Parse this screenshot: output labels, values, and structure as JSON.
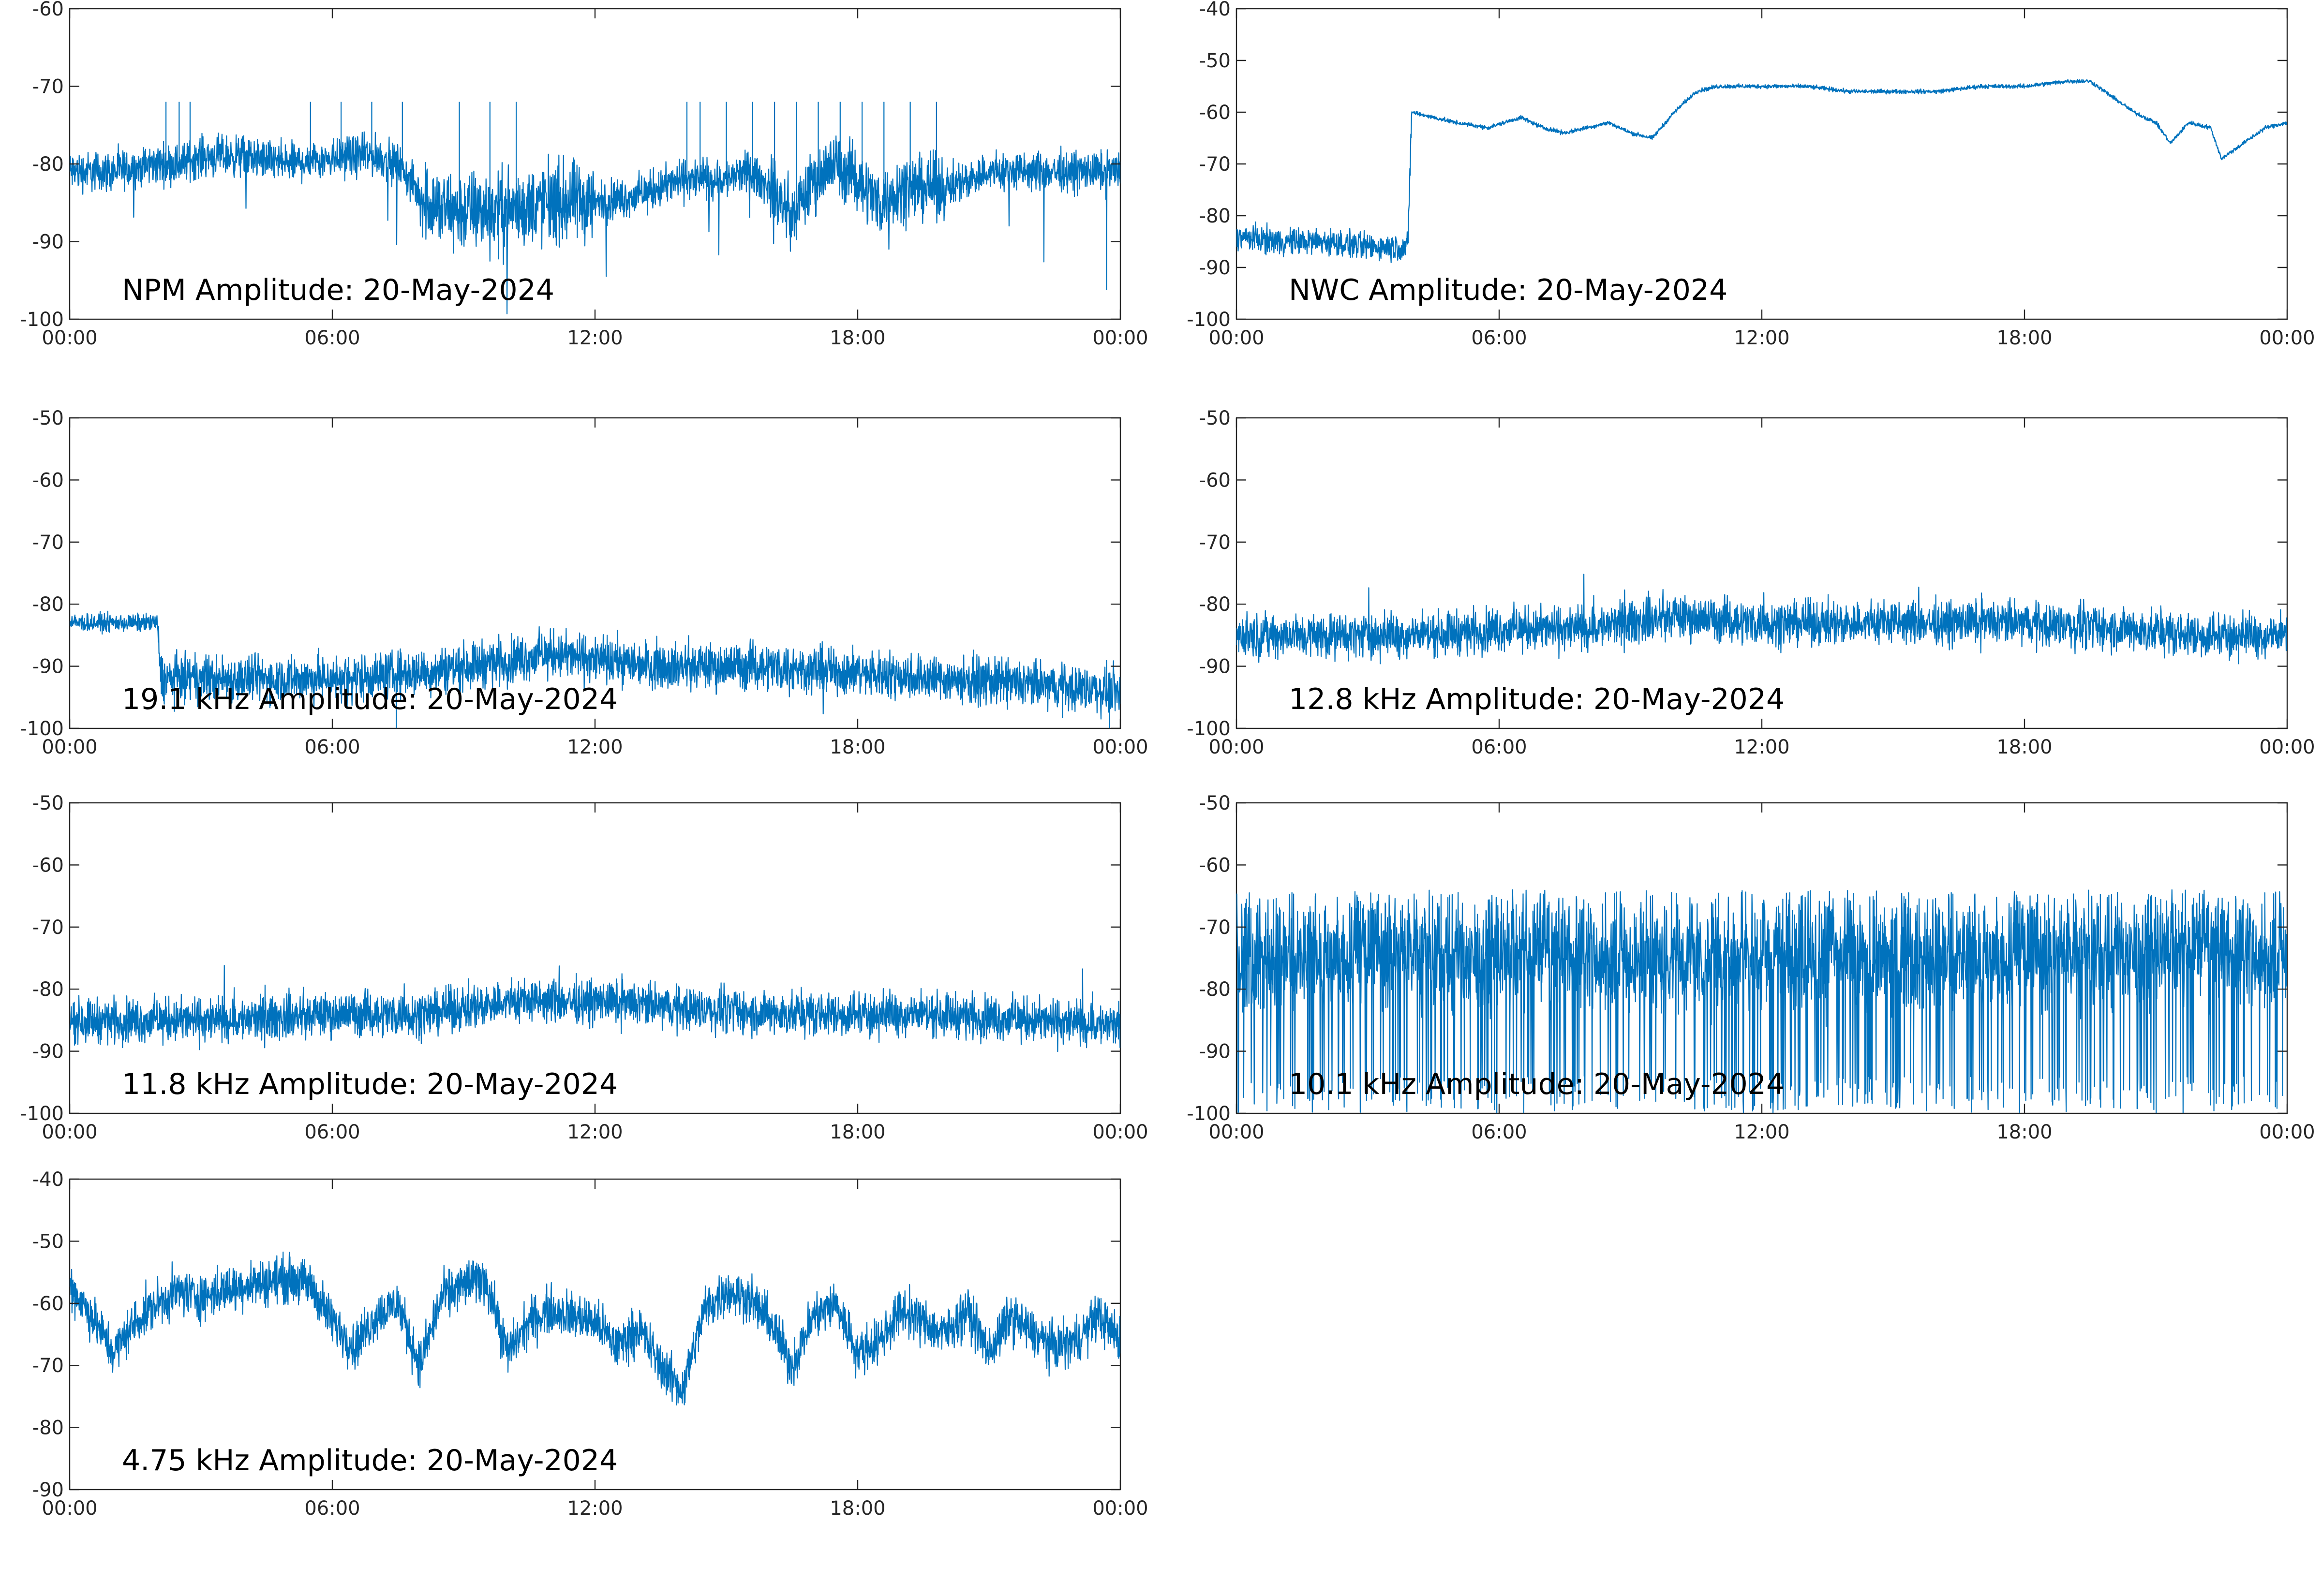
{
  "figure": {
    "trace_color": "#0072BD",
    "axis_color": "#262626",
    "background": "#ffffff"
  },
  "chart_data": [
    {
      "type": "line",
      "title": "NPM Amplitude: 20-May-2024",
      "xlabel": "",
      "ylabel": "",
      "x_ticks": [
        "00:00",
        "06:00",
        "12:00",
        "18:00",
        "00:00"
      ],
      "ylim": [
        -100,
        -60
      ],
      "y_ticks": [
        "-60",
        "-70",
        "-80",
        "-90",
        "-100"
      ],
      "grid": false,
      "series": [
        {
          "x": [
            "00:00",
            "01:00",
            "02:00",
            "02:30",
            "03:00",
            "04:00",
            "05:00",
            "06:00",
            "07:00",
            "07:30",
            "08:00",
            "08:30",
            "09:00",
            "10:00",
            "11:00",
            "12:00",
            "13:00",
            "13:30",
            "14:00",
            "15:00",
            "15:30",
            "16:00",
            "16:30",
            "17:00",
            "17:30",
            "18:00",
            "18:30",
            "19:00",
            "20:00",
            "21:00",
            "22:00",
            "23:00",
            "24:00"
          ],
          "values": [
            -81,
            -81,
            -80,
            -80,
            -79,
            -79,
            -80,
            -79,
            -79,
            -80,
            -84,
            -86,
            -86,
            -86,
            -85,
            -85,
            -84,
            -83,
            -82,
            -82,
            -81,
            -83,
            -87,
            -82,
            -80,
            -82,
            -85,
            -83,
            -83,
            -81,
            -81,
            -81,
            -81
          ]
        }
      ]
    },
    {
      "type": "line",
      "title": "NWC Amplitude: 20-May-2024",
      "xlabel": "",
      "ylabel": "",
      "x_ticks": [
        "00:00",
        "06:00",
        "12:00",
        "18:00",
        "00:00"
      ],
      "ylim": [
        -100,
        -40
      ],
      "y_ticks": [
        "-40",
        "-50",
        "-60",
        "-70",
        "-80",
        "-90",
        "-100"
      ],
      "grid": false,
      "series": [
        {
          "x": [
            "00:00",
            "01:00",
            "02:00",
            "03:00",
            "03:55",
            "04:00",
            "05:00",
            "05:45",
            "06:30",
            "07:00",
            "07:30",
            "08:00",
            "08:30",
            "09:00",
            "09:30",
            "10:00",
            "10:30",
            "11:00",
            "12:00",
            "13:00",
            "14:00",
            "15:00",
            "16:00",
            "17:00",
            "18:00",
            "19:00",
            "19:30",
            "20:00",
            "20:30",
            "21:00",
            "21:20",
            "21:45",
            "22:15",
            "22:30",
            "23:00",
            "23:30",
            "24:00"
          ],
          "values": [
            -84,
            -85,
            -85,
            -86,
            -86,
            -60,
            -62,
            -63,
            -61,
            -63,
            -64,
            -63,
            -62,
            -64,
            -65,
            -60,
            -56,
            -55,
            -55,
            -55,
            -56,
            -56,
            -56,
            -55,
            -55,
            -54,
            -54,
            -57,
            -60,
            -62,
            -66,
            -62,
            -63,
            -69,
            -66,
            -63,
            -62
          ]
        }
      ]
    },
    {
      "type": "line",
      "title": "19.1 kHz Amplitude: 20-May-2024",
      "xlabel": "",
      "ylabel": "",
      "x_ticks": [
        "00:00",
        "06:00",
        "12:00",
        "18:00",
        "00:00"
      ],
      "ylim": [
        -100,
        -50
      ],
      "y_ticks": [
        "-50",
        "-60",
        "-70",
        "-80",
        "-90",
        "-100"
      ],
      "grid": false,
      "series": [
        {
          "x": [
            "00:00",
            "01:00",
            "02:00",
            "02:05",
            "04:00",
            "06:00",
            "08:00",
            "10:00",
            "11:00",
            "12:00",
            "14:00",
            "16:00",
            "18:00",
            "20:00",
            "22:00",
            "24:00"
          ],
          "values": [
            -83,
            -83,
            -83,
            -92,
            -92,
            -92,
            -91,
            -89,
            -88,
            -89,
            -90,
            -90,
            -91,
            -92,
            -93,
            -94
          ]
        }
      ]
    },
    {
      "type": "line",
      "title": "12.8 kHz Amplitude: 20-May-2024",
      "xlabel": "",
      "ylabel": "",
      "x_ticks": [
        "00:00",
        "06:00",
        "12:00",
        "18:00",
        "00:00"
      ],
      "ylim": [
        -100,
        -50
      ],
      "y_ticks": [
        "-50",
        "-60",
        "-70",
        "-80",
        "-90",
        "-100"
      ],
      "grid": false,
      "series": [
        {
          "x": [
            "00:00",
            "02:00",
            "04:00",
            "06:00",
            "08:00",
            "10:00",
            "12:00",
            "14:00",
            "16:00",
            "18:00",
            "20:00",
            "22:00",
            "24:00"
          ],
          "values": [
            -85,
            -85,
            -85,
            -84,
            -84,
            -82,
            -83,
            -83,
            -83,
            -83,
            -84,
            -85,
            -85
          ]
        }
      ]
    },
    {
      "type": "line",
      "title": "11.8 kHz Amplitude: 20-May-2024",
      "xlabel": "",
      "ylabel": "",
      "x_ticks": [
        "00:00",
        "06:00",
        "12:00",
        "18:00",
        "00:00"
      ],
      "ylim": [
        -100,
        -50
      ],
      "y_ticks": [
        "-50",
        "-60",
        "-70",
        "-80",
        "-90",
        "-100"
      ],
      "grid": false,
      "series": [
        {
          "x": [
            "00:00",
            "02:00",
            "04:00",
            "06:00",
            "08:00",
            "10:00",
            "12:00",
            "14:00",
            "16:00",
            "18:00",
            "20:00",
            "22:00",
            "24:00"
          ],
          "values": [
            -85,
            -85,
            -85,
            -84,
            -84,
            -82,
            -82,
            -83,
            -84,
            -84,
            -84,
            -85,
            -86
          ]
        }
      ]
    },
    {
      "type": "line",
      "title": "10.1 kHz Amplitude: 20-May-2024",
      "xlabel": "",
      "ylabel": "",
      "x_ticks": [
        "00:00",
        "06:00",
        "12:00",
        "18:00",
        "00:00"
      ],
      "ylim": [
        -100,
        -50
      ],
      "y_ticks": [
        "-50",
        "-60",
        "-70",
        "-80",
        "-90",
        "-100"
      ],
      "grid": false,
      "series": [
        {
          "x": [
            "00:00",
            "02:00",
            "04:00",
            "06:00",
            "08:00",
            "10:00",
            "12:00",
            "14:00",
            "16:00",
            "18:00",
            "20:00",
            "22:00",
            "24:00"
          ],
          "values": [
            -75,
            -75,
            -74,
            -75,
            -75,
            -75,
            -75,
            -75,
            -75,
            -75,
            -74,
            -74,
            -75
          ]
        }
      ]
    },
    {
      "type": "line",
      "title": "4.75 kHz Amplitude: 20-May-2024",
      "xlabel": "",
      "ylabel": "",
      "x_ticks": [
        "00:00",
        "06:00",
        "12:00",
        "18:00",
        "00:00"
      ],
      "ylim": [
        -90,
        -40
      ],
      "y_ticks": [
        "-40",
        "-50",
        "-60",
        "-70",
        "-80",
        "-90"
      ],
      "grid": false,
      "series": [
        {
          "x": [
            "00:00",
            "00:30",
            "01:00",
            "01:30",
            "02:00",
            "02:30",
            "03:00",
            "04:00",
            "05:00",
            "05:30",
            "06:00",
            "06:30",
            "07:00",
            "07:30",
            "08:00",
            "08:30",
            "09:00",
            "09:30",
            "10:00",
            "10:30",
            "11:00",
            "11:30",
            "12:00",
            "12:30",
            "13:00",
            "13:30",
            "14:00",
            "14:30",
            "15:00",
            "15:30",
            "16:00",
            "16:30",
            "17:00",
            "17:30",
            "18:00",
            "18:30",
            "19:00",
            "19:30",
            "20:00",
            "20:30",
            "21:00",
            "21:30",
            "22:00",
            "22:30",
            "23:00",
            "23:30",
            "24:00"
          ],
          "values": [
            -57,
            -62,
            -68,
            -63,
            -60,
            -58,
            -59,
            -57,
            -56,
            -57,
            -63,
            -67,
            -62,
            -60,
            -70,
            -59,
            -57,
            -56,
            -68,
            -63,
            -61,
            -62,
            -63,
            -67,
            -64,
            -70,
            -74,
            -61,
            -58,
            -59,
            -63,
            -70,
            -62,
            -60,
            -68,
            -66,
            -61,
            -63,
            -65,
            -61,
            -68,
            -62,
            -65,
            -67,
            -66,
            -62,
            -66
          ]
        }
      ]
    }
  ]
}
